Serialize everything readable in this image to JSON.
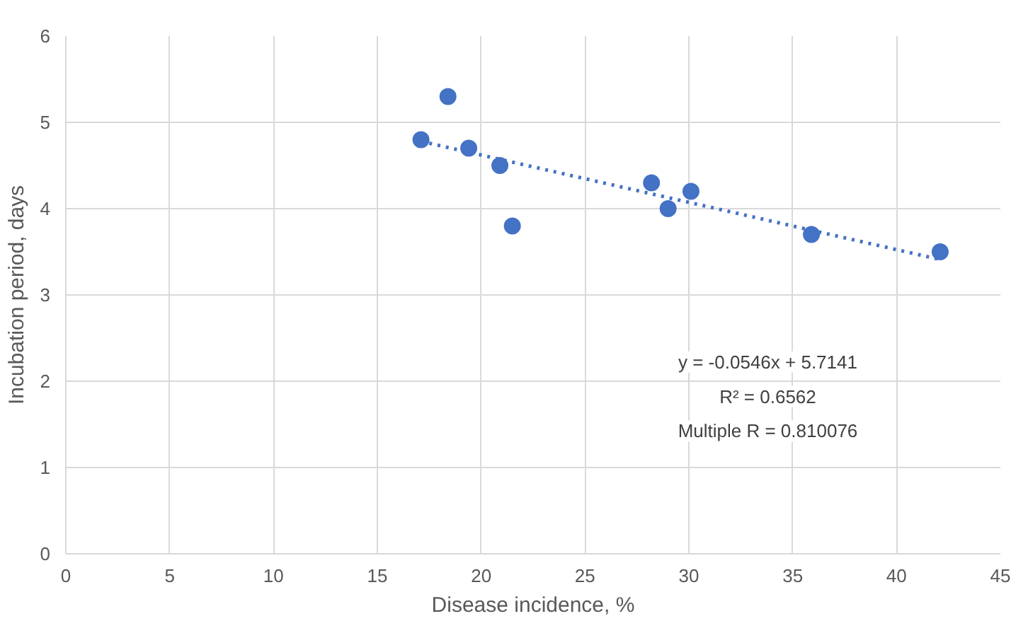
{
  "chart_data": {
    "type": "scatter",
    "xlabel": "Disease incidence, %",
    "ylabel": "Incubation period, days",
    "xlim": [
      0,
      45
    ],
    "ylim": [
      0,
      6
    ],
    "xticks": [
      0,
      5,
      10,
      15,
      20,
      25,
      30,
      35,
      40,
      45
    ],
    "yticks": [
      0,
      1,
      2,
      3,
      4,
      5,
      6
    ],
    "grid": true,
    "marker": "circle",
    "series": [
      {
        "color": "#4472c4",
        "x": [
          17.1,
          18.4,
          19.4,
          20.9,
          21.5,
          28.2,
          29.0,
          30.1,
          35.9,
          42.1
        ],
        "values": [
          4.8,
          5.3,
          4.7,
          4.5,
          3.8,
          4.3,
          4.0,
          4.2,
          3.7,
          3.5
        ]
      },
      {
        "type": "line",
        "color": "#4472c4",
        "line_style": "dotted",
        "marker": "none",
        "x": [
          17.1,
          42.1
        ],
        "values": [
          4.78,
          3.41
        ]
      }
    ],
    "annotations": [
      "y = -0.0546x + 5.7141",
      "R² = 0.6562",
      "Multiple R = 0.810076"
    ]
  }
}
